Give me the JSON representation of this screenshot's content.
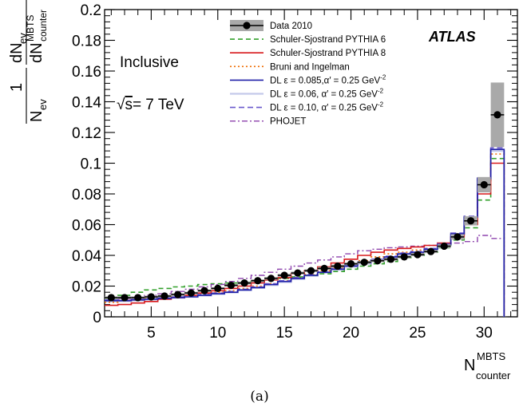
{
  "chart_data": {
    "type": "line",
    "experiment": "ATLAS",
    "annotation_selection": "Inclusive",
    "annotation_energy": "√s= 7 TeV",
    "annotation_energy_parts": [
      "√",
      "s",
      "= 7 TeV"
    ],
    "caption": "(a)",
    "xlabel": "N counter MBTS",
    "xlabel_parts": {
      "main": "N",
      "sup": "MBTS",
      "sub": "counter"
    },
    "ylabel": "1/N ev dN ev/dN counter MBTS",
    "ylabel_parts": {
      "frac1_num": "1",
      "frac1_den_main": "N",
      "frac1_den_sub": "ev",
      "frac2_num_main": "dN",
      "frac2_num_sub": "ev",
      "frac2_den_main": "dN",
      "frac2_den_sup": "MBTS",
      "frac2_den_sub": "counter"
    },
    "xlim": [
      1.5,
      32.5
    ],
    "ylim": [
      0,
      0.2
    ],
    "x_ticks": [
      5,
      10,
      15,
      20,
      25,
      30
    ],
    "x_tick_labels": [
      "5",
      "10",
      "15",
      "20",
      "25",
      "30"
    ],
    "y_ticks": [
      0,
      0.02,
      0.04,
      0.06,
      0.08,
      0.1,
      0.12,
      0.14,
      0.16,
      0.18,
      0.2
    ],
    "y_tick_labels": [
      "0",
      "0.02",
      "0.04",
      "0.06",
      "0.08",
      "0.1",
      "0.12",
      "0.14",
      "0.16",
      "0.18",
      "0.2"
    ],
    "legend_position": "top-right",
    "bins_center": [
      2,
      3,
      4,
      5,
      6,
      7,
      8,
      9,
      10,
      11,
      12,
      13,
      14,
      15,
      16,
      17,
      18,
      19,
      20,
      21,
      22,
      23,
      24,
      25,
      26,
      27,
      28,
      29,
      30,
      31
    ],
    "data": {
      "name": "Data 2010",
      "y": [
        0.0125,
        0.0125,
        0.0125,
        0.013,
        0.0135,
        0.0145,
        0.0155,
        0.017,
        0.0185,
        0.0205,
        0.022,
        0.0235,
        0.025,
        0.027,
        0.0285,
        0.03,
        0.0315,
        0.033,
        0.0345,
        0.0355,
        0.0365,
        0.0375,
        0.039,
        0.0405,
        0.0425,
        0.046,
        0.052,
        0.0625,
        0.086,
        0.1315
      ],
      "sys": [
        0.0008,
        0.0008,
        0.0008,
        0.0008,
        0.0008,
        0.0008,
        0.0008,
        0.0008,
        0.0008,
        0.0009,
        0.0009,
        0.0009,
        0.0009,
        0.0009,
        0.0009,
        0.0009,
        0.0009,
        0.0009,
        0.0009,
        0.0009,
        0.0009,
        0.0009,
        0.0009,
        0.001,
        0.001,
        0.0012,
        0.0018,
        0.003,
        0.005,
        0.021
      ]
    },
    "series": [
      {
        "name": "Schuler-Sjostrand PYTHIA 6",
        "color": "#33a02c",
        "dash": "6,4",
        "width": 1.6,
        "values": [
          0.012,
          0.014,
          0.016,
          0.0175,
          0.0185,
          0.0195,
          0.02,
          0.021,
          0.0215,
          0.022,
          0.0225,
          0.023,
          0.024,
          0.025,
          0.026,
          0.027,
          0.028,
          0.0295,
          0.031,
          0.033,
          0.0345,
          0.036,
          0.0385,
          0.04,
          0.042,
          0.045,
          0.05,
          0.058,
          0.076,
          0.103
        ]
      },
      {
        "name": "Schuler-Sjostrand PYTHIA 8",
        "color": "#d7191c",
        "dash": "",
        "width": 1.6,
        "values": [
          0.0075,
          0.008,
          0.009,
          0.01,
          0.0115,
          0.0125,
          0.014,
          0.0155,
          0.017,
          0.0185,
          0.02,
          0.022,
          0.024,
          0.0255,
          0.028,
          0.03,
          0.0325,
          0.035,
          0.0375,
          0.04,
          0.042,
          0.0435,
          0.0445,
          0.0455,
          0.0465,
          0.048,
          0.052,
          0.06,
          0.08,
          0.1
        ]
      },
      {
        "name": "Bruni and Ingelman",
        "color": "#ef6c00",
        "dash": "2,3",
        "width": 1.6,
        "values": [
          0.0095,
          0.0105,
          0.011,
          0.012,
          0.0125,
          0.013,
          0.014,
          0.015,
          0.016,
          0.017,
          0.0185,
          0.02,
          0.0215,
          0.0235,
          0.0255,
          0.0275,
          0.03,
          0.032,
          0.0345,
          0.0365,
          0.039,
          0.041,
          0.042,
          0.0435,
          0.0445,
          0.047,
          0.052,
          0.062,
          0.083,
          0.106
        ]
      },
      {
        "name": "DL ε = 0.085,α′ = 0.25 GeV",
        "name_sup": "-2",
        "color": "#1f1fa8",
        "dash": "",
        "width": 1.6,
        "values": [
          0.0105,
          0.0105,
          0.011,
          0.0115,
          0.012,
          0.0125,
          0.013,
          0.014,
          0.015,
          0.016,
          0.0175,
          0.019,
          0.021,
          0.023,
          0.025,
          0.027,
          0.029,
          0.031,
          0.033,
          0.035,
          0.037,
          0.039,
          0.041,
          0.042,
          0.044,
          0.047,
          0.054,
          0.065,
          0.09,
          0.109
        ]
      },
      {
        "name": "DL ε = 0.06, α′ = 0.25 GeV",
        "name_sup": "-2",
        "color": "#c4c9ea",
        "dash": "",
        "width": 2.2,
        "values": [
          0.01,
          0.0102,
          0.0106,
          0.0112,
          0.0118,
          0.0124,
          0.013,
          0.0138,
          0.0148,
          0.0158,
          0.0172,
          0.0188,
          0.0206,
          0.0226,
          0.0246,
          0.0266,
          0.0286,
          0.0306,
          0.0326,
          0.0346,
          0.0366,
          0.0386,
          0.0404,
          0.0418,
          0.0436,
          0.0466,
          0.0534,
          0.0644,
          0.089,
          0.108
        ]
      },
      {
        "name": "DL ε = 0.10, α′ = 0.25 GeV",
        "name_sup": "-2",
        "color": "#6a5acd",
        "dash": "7,4",
        "width": 1.6,
        "values": [
          0.011,
          0.011,
          0.0115,
          0.012,
          0.0125,
          0.013,
          0.0135,
          0.0145,
          0.0155,
          0.0165,
          0.018,
          0.0195,
          0.0215,
          0.0235,
          0.0255,
          0.0275,
          0.0295,
          0.0315,
          0.0335,
          0.0355,
          0.0375,
          0.0395,
          0.0415,
          0.0425,
          0.0445,
          0.0475,
          0.0545,
          0.0655,
          0.0905,
          0.11
        ]
      },
      {
        "name": "PHOJET",
        "color": "#8e44ad",
        "dash": "7,3,2,3",
        "width": 1.4,
        "values": [
          0.0105,
          0.0115,
          0.0125,
          0.014,
          0.015,
          0.0165,
          0.018,
          0.0195,
          0.021,
          0.023,
          0.025,
          0.027,
          0.029,
          0.031,
          0.033,
          0.035,
          0.037,
          0.039,
          0.041,
          0.043,
          0.044,
          0.045,
          0.0455,
          0.046,
          0.0465,
          0.047,
          0.048,
          0.049,
          0.053,
          0.051
        ]
      }
    ]
  }
}
